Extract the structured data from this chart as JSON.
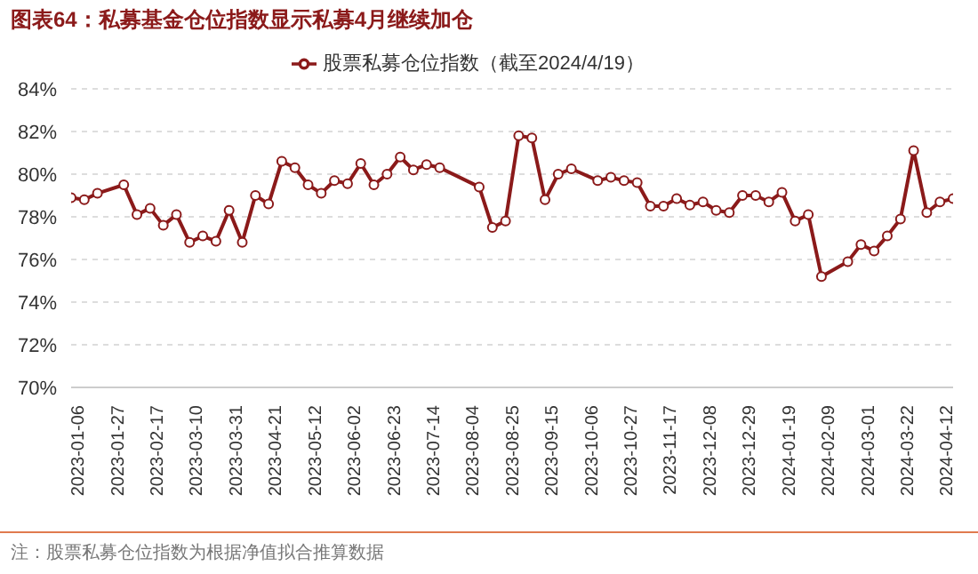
{
  "chart_data": {
    "type": "line",
    "title": "图表64：私募基金仓位指数显示私募4月继续加仓",
    "x": [
      "2023-01-06",
      "2023-01-13",
      "2023-01-20",
      "2023-02-03",
      "2023-02-10",
      "2023-02-17",
      "2023-02-24",
      "2023-03-03",
      "2023-03-10",
      "2023-03-17",
      "2023-03-24",
      "2023-03-31",
      "2023-04-07",
      "2023-04-14",
      "2023-04-21",
      "2023-04-28",
      "2023-05-05",
      "2023-05-12",
      "2023-05-19",
      "2023-05-26",
      "2023-06-02",
      "2023-06-09",
      "2023-06-16",
      "2023-06-23",
      "2023-06-30",
      "2023-07-07",
      "2023-07-14",
      "2023-07-21",
      "2023-08-11",
      "2023-08-18",
      "2023-08-25",
      "2023-09-01",
      "2023-09-08",
      "2023-09-15",
      "2023-09-22",
      "2023-09-29",
      "2023-10-13",
      "2023-10-20",
      "2023-10-27",
      "2023-11-03",
      "2023-11-10",
      "2023-11-17",
      "2023-11-24",
      "2023-12-01",
      "2023-12-08",
      "2023-12-15",
      "2023-12-22",
      "2023-12-29",
      "2024-01-05",
      "2024-01-12",
      "2024-01-19",
      "2024-01-26",
      "2024-02-02",
      "2024-02-09",
      "2024-02-23",
      "2024-03-01",
      "2024-03-08",
      "2024-03-15",
      "2024-03-22",
      "2024-03-29",
      "2024-04-05",
      "2024-04-12",
      "2024-04-19"
    ],
    "series": [
      {
        "name": "股票私募仓位指数（截至2024/4/19）",
        "color": "#8b1a1a",
        "values": [
          78.9,
          78.8,
          79.1,
          79.5,
          78.1,
          78.4,
          77.6,
          78.1,
          76.8,
          77.1,
          76.85,
          78.3,
          76.8,
          79.0,
          78.6,
          80.6,
          80.3,
          79.5,
          79.1,
          79.7,
          79.55,
          80.5,
          79.5,
          80.0,
          80.8,
          80.2,
          80.45,
          80.3,
          79.4,
          77.5,
          77.8,
          81.8,
          81.7,
          78.8,
          80.0,
          80.25,
          79.7,
          79.85,
          79.7,
          79.6,
          78.5,
          78.5,
          78.85,
          78.55,
          78.7,
          78.3,
          78.2,
          79.0,
          79.0,
          78.7,
          79.15,
          77.8,
          78.1,
          75.2,
          75.9,
          76.7,
          76.4,
          77.1,
          77.9,
          81.1,
          78.2,
          78.7,
          78.85
        ]
      }
    ],
    "xlim": [
      "2023-01-06",
      "2024-04-19"
    ],
    "xticks": [
      "2023-01-06",
      "2023-01-27",
      "2023-02-17",
      "2023-03-10",
      "2023-03-31",
      "2023-04-21",
      "2023-05-12",
      "2023-06-02",
      "2023-06-23",
      "2023-07-14",
      "2023-08-04",
      "2023-08-25",
      "2023-09-15",
      "2023-10-06",
      "2023-10-27",
      "2023-11-17",
      "2023-12-08",
      "2023-12-29",
      "2024-01-19",
      "2024-02-09",
      "2024-03-01",
      "2024-03-22",
      "2024-04-12"
    ],
    "ylim": [
      70,
      84
    ],
    "yticks": [
      {
        "value": 70,
        "label": "70%"
      },
      {
        "value": 72,
        "label": "72%"
      },
      {
        "value": 74,
        "label": "74%"
      },
      {
        "value": 76,
        "label": "76%"
      },
      {
        "value": 78,
        "label": "78%"
      },
      {
        "value": 80,
        "label": "80%"
      },
      {
        "value": 82,
        "label": "82%"
      },
      {
        "value": 84,
        "label": "84%"
      }
    ],
    "grid": "y",
    "legend": "top",
    "marker": "circle",
    "line_style": "solid",
    "annotations": [
      "注：股票私募仓位指数为根据净值拟合推算数据"
    ]
  }
}
